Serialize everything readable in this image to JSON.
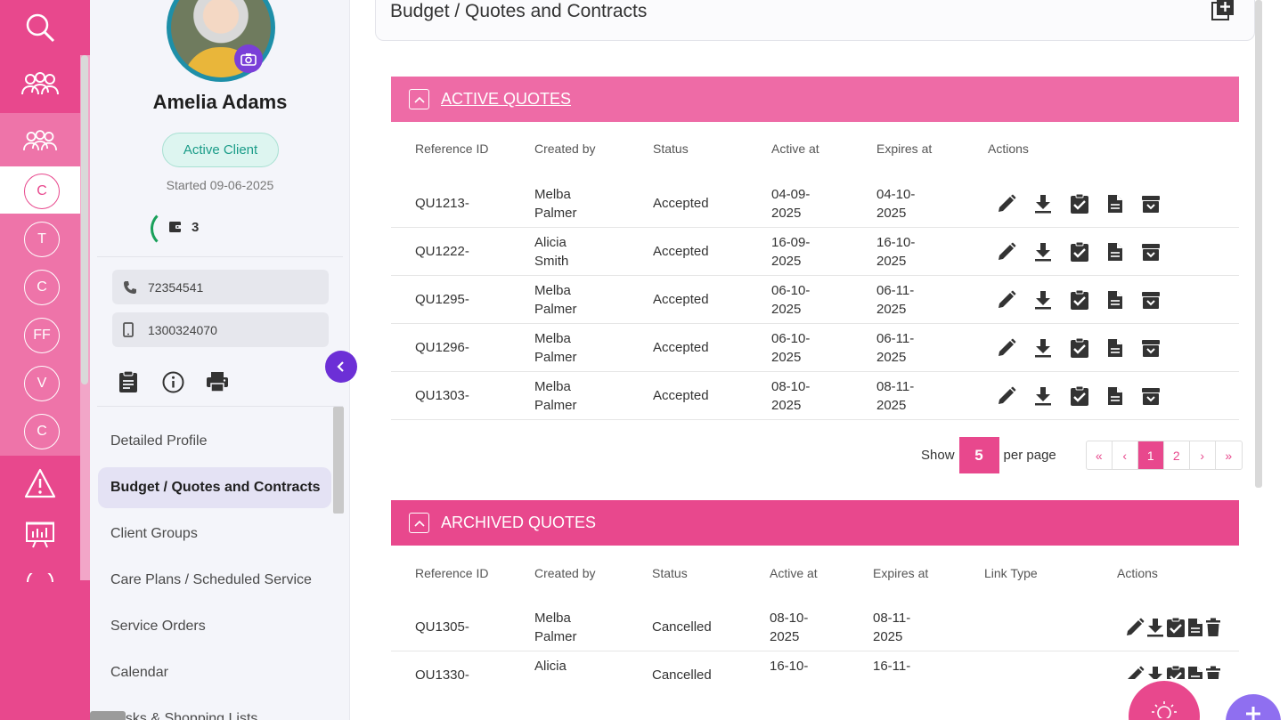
{
  "rail": {
    "circles": [
      "C",
      "T",
      "C",
      "FF",
      "V",
      "C"
    ]
  },
  "profile": {
    "name": "Amelia Adams",
    "status": "Active Client",
    "started": "Started 09-06-2025",
    "wallet_count": "3",
    "phone": "72354541",
    "mobile": "1300324070",
    "nav": [
      "Detailed Profile",
      "Budget / Quotes and Contracts",
      "Client Groups",
      "Care Plans / Scheduled Service",
      "Service Orders",
      "Calendar",
      "Tasks & Shopping Lists"
    ]
  },
  "page": {
    "title": "Budget / Quotes and Contracts"
  },
  "active_quotes": {
    "title": "ACTIVE QUOTES",
    "columns": [
      "Reference ID",
      "Created by",
      "Status",
      "Active at",
      "Expires at",
      "Actions"
    ],
    "rows": [
      {
        "ref": "QU1213-",
        "by1": "Melba",
        "by2": "Palmer",
        "status": "Accepted",
        "act1": "04-09-",
        "act2": "2025",
        "exp1": "04-10-",
        "exp2": "2025"
      },
      {
        "ref": "QU1222-",
        "by1": "Alicia",
        "by2": "Smith",
        "status": "Accepted",
        "act1": "16-09-",
        "act2": "2025",
        "exp1": "16-10-",
        "exp2": "2025"
      },
      {
        "ref": "QU1295-",
        "by1": "Melba",
        "by2": "Palmer",
        "status": "Accepted",
        "act1": "06-10-",
        "act2": "2025",
        "exp1": "06-11-",
        "exp2": "2025"
      },
      {
        "ref": "QU1296-",
        "by1": "Melba",
        "by2": "Palmer",
        "status": "Accepted",
        "act1": "06-10-",
        "act2": "2025",
        "exp1": "06-11-",
        "exp2": "2025"
      },
      {
        "ref": "QU1303-",
        "by1": "Melba",
        "by2": "Palmer",
        "status": "Accepted",
        "act1": "08-10-",
        "act2": "2025",
        "exp1": "08-11-",
        "exp2": "2025"
      }
    ]
  },
  "pager": {
    "show": "Show",
    "per_page_value": "5",
    "per_page": "per page",
    "first": "«",
    "prev": "‹",
    "page1": "1",
    "page2": "2",
    "next": "›",
    "last": "»"
  },
  "archived_quotes": {
    "title": "ARCHIVED QUOTES",
    "columns": [
      "Reference ID",
      "Created by",
      "Status",
      "Active at",
      "Expires at",
      "Link Type",
      "Actions"
    ],
    "rows": [
      {
        "ref": "QU1305-",
        "by1": "Melba",
        "by2": "Palmer",
        "status": "Cancelled",
        "act1": "08-10-",
        "act2": "2025",
        "exp1": "08-11-",
        "exp2": "2025"
      },
      {
        "ref": "QU1330-",
        "by1": "Alicia",
        "by2": "",
        "status": "Cancelled",
        "act1": "16-10-",
        "act2": "",
        "exp1": "16-11-",
        "exp2": ""
      }
    ]
  },
  "colors": {
    "brand_pink": "#e8488d",
    "light_pink": "#ee6ba6",
    "accent_purple": "#6c2fd6",
    "status_green": "#1a9c88"
  }
}
